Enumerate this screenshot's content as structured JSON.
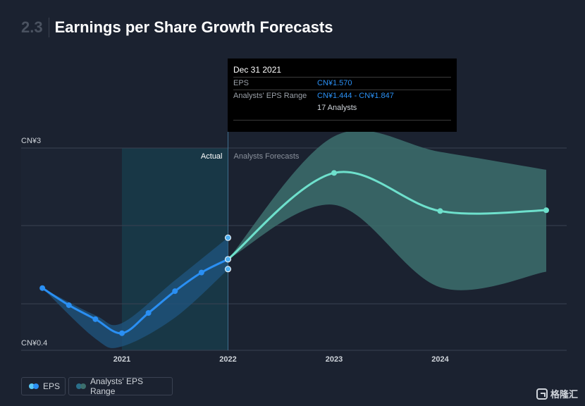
{
  "header": {
    "number": "2.3",
    "title": "Earnings per Share Growth Forecasts"
  },
  "tooltip": {
    "date": "Dec 31 2021",
    "eps_label": "EPS",
    "eps_value": "CN¥1.570",
    "range_label": "Analysts' EPS Range",
    "range_value": "CN¥1.444 - CN¥1.847",
    "analysts": "17 Analysts"
  },
  "legend": {
    "eps": "EPS",
    "range": "Analysts' EPS Range"
  },
  "watermark": {
    "text": "格隆汇"
  },
  "colors": {
    "eps_line": "#2a8ff3",
    "forecast_line": "#6ee0cc",
    "range_actual": "#1f5580",
    "range_forecast": "#3c6f6d",
    "actual_shade": "#15485a"
  },
  "chart_data": {
    "type": "line",
    "title": "Earnings per Share Growth Forecasts",
    "ylim": [
      0.4,
      3
    ],
    "y_tick_labels": [
      "CN¥3",
      "CN¥0.4"
    ],
    "x_tick_labels": [
      "2021",
      "2022",
      "2023",
      "2024"
    ],
    "region_labels": {
      "actual": "Actual",
      "forecast": "Analysts Forecasts"
    },
    "series": [
      {
        "name": "EPS",
        "x": [
          2020.25,
          2020.5,
          2020.75,
          2021.0,
          2021.25,
          2021.5,
          2021.75,
          2022.0
        ],
        "values": [
          1.2,
          0.98,
          0.8,
          0.62,
          0.88,
          1.16,
          1.4,
          1.57
        ]
      },
      {
        "name": "EPS Forecast",
        "x": [
          2022.0,
          2023.0,
          2024.0,
          2025.0
        ],
        "values": [
          1.57,
          2.68,
          2.19,
          2.2
        ]
      },
      {
        "name": "Analysts' EPS Range (Actual)",
        "x": [
          2020.25,
          2020.75,
          2021.0,
          2021.5,
          2022.0
        ],
        "low": [
          1.2,
          0.55,
          0.45,
          0.82,
          1.44
        ],
        "high": [
          1.2,
          0.85,
          0.75,
          1.3,
          1.85
        ]
      },
      {
        "name": "Analysts' EPS Range (Forecast)",
        "x": [
          2022.0,
          2023.0,
          2024.0,
          2025.0
        ],
        "low": [
          1.57,
          2.27,
          1.21,
          1.41
        ],
        "high": [
          1.57,
          3.15,
          2.95,
          2.72
        ]
      }
    ],
    "highlight": {
      "x": 2022.0,
      "eps": 1.57,
      "low": 1.444,
      "high": 1.847
    }
  }
}
